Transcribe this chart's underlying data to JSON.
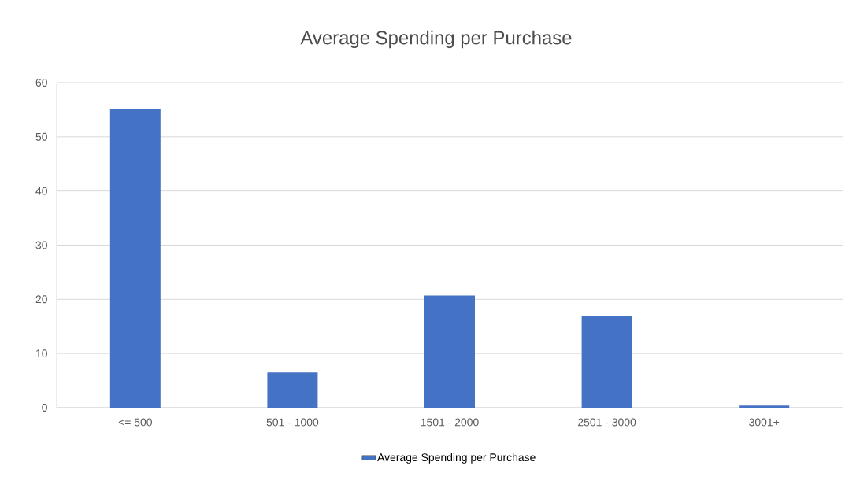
{
  "chart_data": {
    "type": "bar",
    "title": "Average Spending per Purchase",
    "categories": [
      "<= 500",
      "501 - 1000",
      "1501 - 2000",
      "2501 - 3000",
      "3001+"
    ],
    "series": [
      {
        "name": "Average Spending per Purchase",
        "color": "#4472c4",
        "values": [
          55.2,
          6.5,
          20.7,
          17.0,
          0.4
        ]
      }
    ],
    "ylim": [
      0,
      60
    ],
    "yticks": [
      0,
      10,
      20,
      30,
      40,
      50,
      60
    ],
    "grid": "y",
    "legend": "bottom"
  }
}
